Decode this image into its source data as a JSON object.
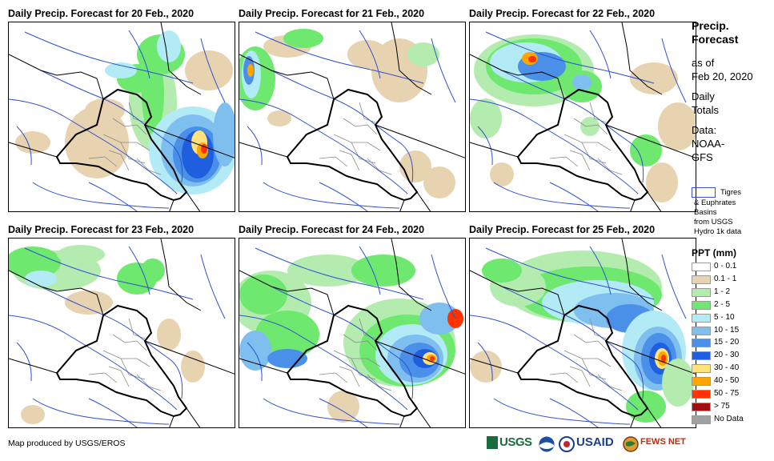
{
  "panels": [
    {
      "title": "Daily Precip. Forecast for 20 Feb., 2020"
    },
    {
      "title": "Daily Precip. Forecast for 21 Feb., 2020"
    },
    {
      "title": "Daily Precip. Forecast for 22 Feb., 2020"
    },
    {
      "title": "Daily Precip. Forecast for 23 Feb., 2020"
    },
    {
      "title": "Daily Precip. Forecast for 24 Feb., 2020"
    },
    {
      "title": "Daily Precip. Forecast for 25 Feb., 2020"
    }
  ],
  "sidebar": {
    "title_line1": "Precip.",
    "title_line2": "Forecast",
    "asof_line1": "as of",
    "asof_line2": "Feb 20, 2020",
    "totals_line1": "Daily",
    "totals_line2": "Totals",
    "data_line1": "Data:",
    "data_line2": "NOAA-",
    "data_line3": "GFS",
    "basin_line1": "Tigres",
    "basin_line2": "& Euphrates",
    "basin_line3": "Basins",
    "basin_line4": "from USGS",
    "basin_line5": "Hydro 1k data"
  },
  "legend": {
    "title": "PPT (mm)",
    "items": [
      {
        "label": "0 - 0.1",
        "color": "#ffffff"
      },
      {
        "label": "0.1 - 1",
        "color": "#e8d3b0"
      },
      {
        "label": "1 - 2",
        "color": "#b4ecb0"
      },
      {
        "label": "2 - 5",
        "color": "#6ee86e"
      },
      {
        "label": "5 - 10",
        "color": "#b2eaf5"
      },
      {
        "label": "10 - 15",
        "color": "#7fbff0"
      },
      {
        "label": "15 - 20",
        "color": "#4a90e8"
      },
      {
        "label": "20 - 30",
        "color": "#1f5fdf"
      },
      {
        "label": "30 - 40",
        "color": "#ffe37a"
      },
      {
        "label": "40 - 50",
        "color": "#ffa500"
      },
      {
        "label": "50 - 75",
        "color": "#ff3300"
      },
      {
        "label": "> 75",
        "color": "#a01010"
      },
      {
        "label": "No Data",
        "color": "#a0a0a0"
      }
    ]
  },
  "footer": {
    "credit": "Map produced by USGS/EROS"
  },
  "logos": {
    "usgs": "USGS",
    "usaid": "USAID",
    "fewsnet": "FEWS NET"
  }
}
